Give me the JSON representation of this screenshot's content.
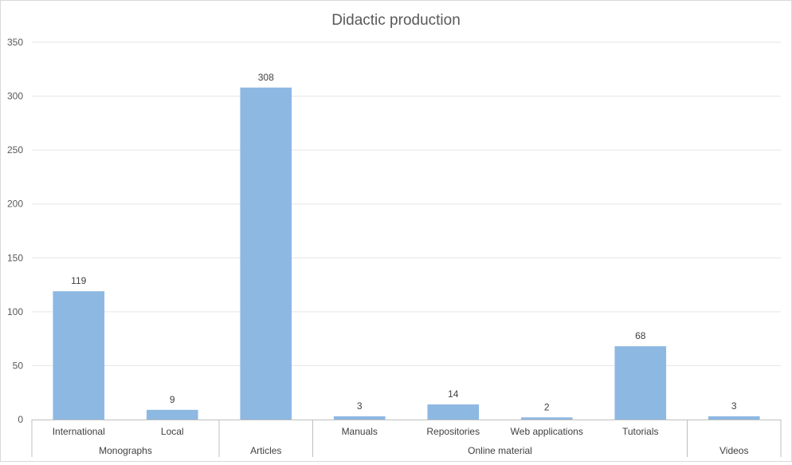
{
  "chart_data": {
    "type": "bar",
    "title": "Didactic production",
    "xlabel": "",
    "ylabel": "",
    "ylim": [
      0,
      350
    ],
    "yticks": [
      0,
      50,
      100,
      150,
      200,
      250,
      300,
      350
    ],
    "grid": true,
    "legend": "none",
    "bar_color": "#8db8e2",
    "categories": [
      "International",
      "Local",
      "",
      "Manuals",
      "Repositories",
      "Web applications",
      "Tutorials",
      ""
    ],
    "values": [
      119,
      9,
      308,
      3,
      14,
      2,
      68,
      3
    ],
    "groups": [
      {
        "label": "Monographs",
        "start": 0,
        "end": 1
      },
      {
        "label": "Articles",
        "start": 2,
        "end": 2
      },
      {
        "label": "Online material",
        "start": 3,
        "end": 6
      },
      {
        "label": "Videos",
        "start": 7,
        "end": 7
      }
    ]
  }
}
